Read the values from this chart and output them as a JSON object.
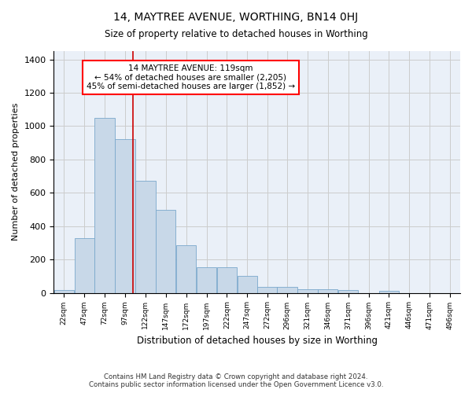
{
  "title": "14, MAYTREE AVENUE, WORTHING, BN14 0HJ",
  "subtitle": "Size of property relative to detached houses in Worthing",
  "xlabel": "Distribution of detached houses by size in Worthing",
  "ylabel": "Number of detached properties",
  "annotation_title": "14 MAYTREE AVENUE: 119sqm",
  "annotation_line1": "← 54% of detached houses are smaller (2,205)",
  "annotation_line2": "45% of semi-detached houses are larger (1,852) →",
  "property_sqm": 119,
  "bar_edges": [
    22,
    47,
    72,
    97,
    122,
    147,
    172,
    197,
    222,
    247,
    272,
    296,
    321,
    346,
    371,
    396,
    421,
    446,
    471,
    496,
    521
  ],
  "bar_heights": [
    18,
    330,
    1050,
    920,
    670,
    500,
    285,
    155,
    155,
    100,
    35,
    35,
    22,
    22,
    15,
    0,
    12,
    0,
    0,
    0,
    0
  ],
  "bar_color": "#c8d8e8",
  "bar_edge_color": "#7aa8cc",
  "vline_color": "#cc0000",
  "vline_x": 119,
  "ylim": [
    0,
    1450
  ],
  "yticks": [
    0,
    200,
    400,
    600,
    800,
    1000,
    1200,
    1400
  ],
  "grid_color": "#cccccc",
  "bg_color": "#eaf0f8",
  "footer_line1": "Contains HM Land Registry data © Crown copyright and database right 2024.",
  "footer_line2": "Contains public sector information licensed under the Open Government Licence v3.0."
}
